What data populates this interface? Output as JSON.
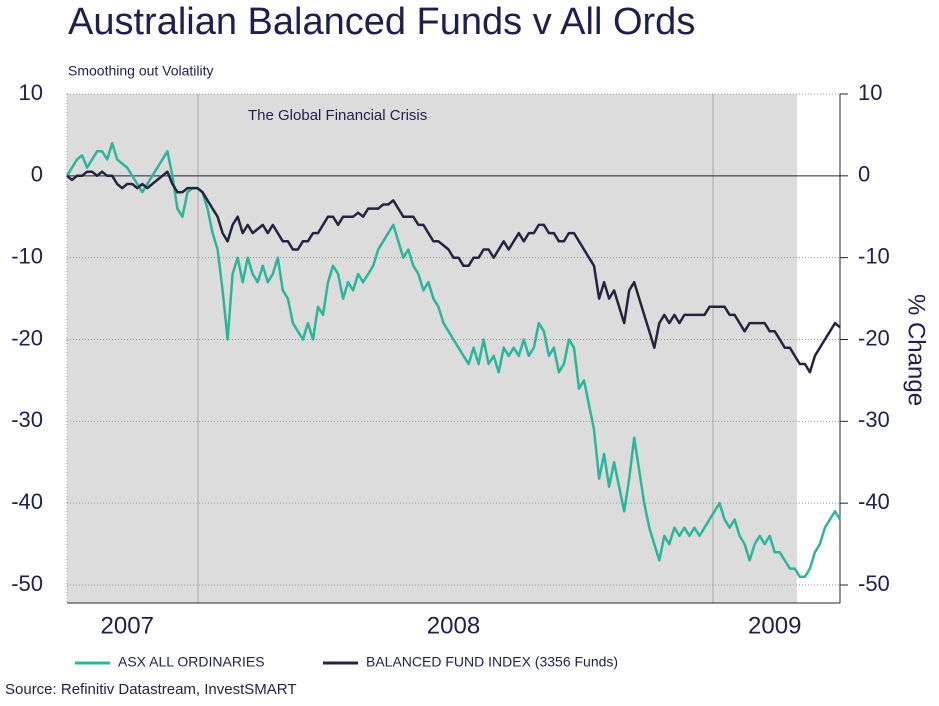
{
  "chart_data": {
    "type": "line",
    "title": "Australian Balanced Funds v All Ords",
    "subtitle": "Smoothing out Volatility",
    "annotation": "The Global Financial Crisis",
    "source": "Source: Refinitiv Datastream, InvestSMART",
    "y2_label": "% Change",
    "categories": [
      null,
      null,
      null,
      null,
      null,
      null,
      null,
      null,
      null,
      null,
      null,
      null,
      "2007",
      null,
      null,
      null,
      null,
      null,
      null,
      null,
      null,
      null,
      null,
      null,
      null,
      null,
      null,
      null,
      null,
      null,
      null,
      null,
      null,
      null,
      null,
      null,
      null,
      null,
      null,
      null,
      null,
      null,
      null,
      null,
      null,
      null,
      null,
      null,
      null,
      null,
      null,
      null,
      null,
      null,
      null,
      null,
      null,
      null,
      null,
      null,
      null,
      null,
      null,
      null,
      null,
      null,
      null,
      null,
      null,
      null,
      null,
      null,
      null,
      null,
      null,
      null,
      null,
      "2008",
      null,
      null,
      null,
      null,
      null,
      null,
      null,
      null,
      null,
      null,
      null,
      null,
      null,
      null,
      null,
      null,
      null,
      null,
      null,
      null,
      null,
      null,
      null,
      null,
      null,
      null,
      null,
      null,
      null,
      null,
      null,
      null,
      null,
      null,
      null,
      null,
      null,
      null,
      null,
      null,
      null,
      null,
      null,
      null,
      null,
      null,
      null,
      null,
      null,
      null,
      null,
      null,
      null,
      null,
      null,
      null,
      null,
      null,
      null,
      null,
      null,
      null,
      null,
      "2009",
      null,
      null,
      null,
      null,
      null,
      null,
      null,
      null,
      null,
      null,
      null,
      null,
      null
    ],
    "series": [
      {
        "name": "ASX ALL ORDINARIES",
        "color": "#2bb59a",
        "values": [
          0,
          1,
          2,
          2.5,
          1,
          2,
          3,
          3,
          2,
          4,
          2,
          1.5,
          1,
          0,
          -1,
          -2,
          -1,
          0,
          1,
          2,
          3,
          0,
          -4,
          -5,
          -2,
          -1.5,
          -1.5,
          -2,
          -4,
          -7,
          -9,
          -14,
          -20,
          -12,
          -10,
          -13,
          -10,
          -12,
          -13,
          -11,
          -13,
          -12,
          -10,
          -14,
          -15,
          -18,
          -19,
          -20,
          -18,
          -20,
          -16,
          -17,
          -13,
          -11,
          -12,
          -15,
          -13,
          -14,
          -12,
          -13,
          -12,
          -11,
          -9,
          -8,
          -7,
          -6,
          -8,
          -10,
          -9,
          -11,
          -12,
          -14,
          -13,
          -15,
          -16,
          -18,
          -19,
          -20,
          -21,
          -22,
          -23,
          -21,
          -23,
          -20,
          -23,
          -22,
          -24,
          -21,
          -22,
          -21,
          -22,
          -20,
          -22,
          -21,
          -18,
          -19,
          -22,
          -21,
          -24,
          -23,
          -20,
          -21,
          -26,
          -25,
          -28,
          -31,
          -37,
          -34,
          -38,
          -35,
          -38,
          -41,
          -37,
          -32,
          -36,
          -40,
          -43,
          -45,
          -47,
          -44,
          -45,
          -43,
          -44,
          -43,
          -44,
          -43,
          -44,
          -43,
          -42,
          -41,
          -40,
          -42,
          -43,
          -42,
          -44,
          -45,
          -47,
          -45,
          -44,
          -45,
          -44,
          -46,
          -46,
          -47,
          -48,
          -48,
          -49,
          -49,
          -48,
          -46,
          -45,
          -43,
          -42,
          -41,
          -42
        ]
      },
      {
        "name": "BALANCED FUND INDEX (3356 Funds)",
        "color": "#24243f",
        "values": [
          0,
          -0.5,
          0,
          0,
          0.5,
          0.5,
          0,
          0.5,
          0,
          0,
          -1,
          -1.5,
          -1,
          -1,
          -1.5,
          -1,
          -1.5,
          -1,
          -0.5,
          0,
          0.5,
          -1,
          -2,
          -2,
          -1.5,
          -1.5,
          -1.5,
          -2,
          -3,
          -4,
          -5,
          -7,
          -8,
          -6,
          -5,
          -7,
          -6,
          -7,
          -6.5,
          -6,
          -7,
          -6,
          -7,
          -8,
          -8,
          -9,
          -9,
          -8,
          -8,
          -7,
          -7,
          -6,
          -5,
          -5,
          -6,
          -5,
          -5,
          -5,
          -4.5,
          -5,
          -4,
          -4,
          -4,
          -3.5,
          -3.5,
          -3,
          -4,
          -5,
          -5,
          -5,
          -6,
          -6,
          -7,
          -8,
          -8,
          -8.5,
          -9,
          -10,
          -10,
          -11,
          -11,
          -10,
          -10,
          -9,
          -9,
          -10,
          -9,
          -8,
          -9,
          -8,
          -7,
          -8,
          -7,
          -7,
          -6,
          -6,
          -7,
          -7,
          -8,
          -8,
          -7,
          -7,
          -8,
          -9,
          -10,
          -11,
          -15,
          -13,
          -15,
          -14,
          -16,
          -18,
          -14,
          -13,
          -15,
          -17,
          -19,
          -21,
          -18,
          -17,
          -18,
          -17,
          -18,
          -17,
          -17,
          -17,
          -17,
          -17,
          -16,
          -16,
          -16,
          -16,
          -17,
          -17,
          -18,
          -19,
          -18,
          -18,
          -18,
          -18,
          -19,
          -19,
          -20,
          -21,
          -21,
          -22,
          -23,
          -23,
          -24,
          -22,
          -21,
          -20,
          -19,
          -18,
          -18.5
        ]
      }
    ],
    "ylim": [
      -52.2,
      10
    ],
    "yticks": [
      10,
      0,
      -10,
      -20,
      -30,
      -40,
      -50
    ],
    "y2lim": [
      -52.2,
      10
    ],
    "y2ticks": [
      10,
      0,
      -10,
      -20,
      -30,
      -40,
      -50
    ],
    "grid": true,
    "legend": "bottom"
  }
}
